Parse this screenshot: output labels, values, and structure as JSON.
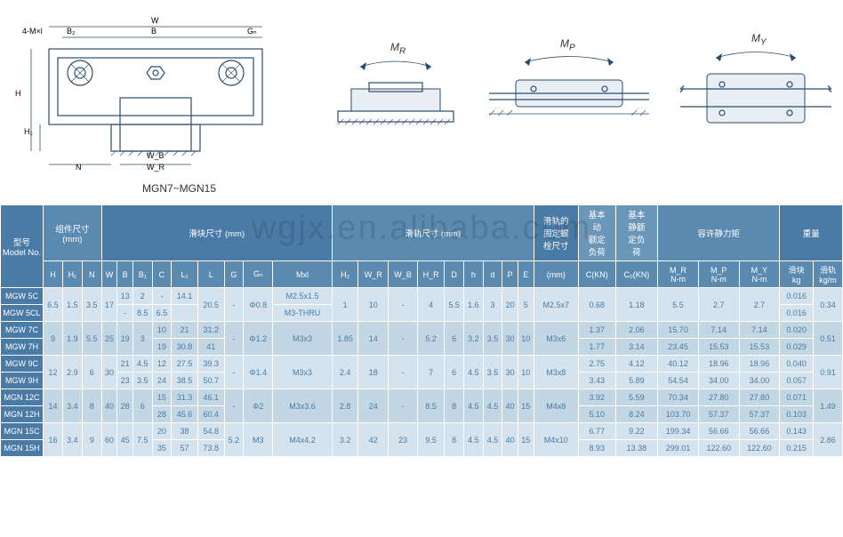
{
  "diagram_labels": {
    "main": "MGN7~MGN15",
    "mr": "M",
    "mr_sub": "R",
    "mp": "M",
    "mp_sub": "P",
    "my": "M",
    "my_sub": "Y",
    "dim_4ml": "4-M×l",
    "dim_w": "W",
    "dim_b2": "B₂",
    "dim_b": "B",
    "dim_gn": "Gₙ",
    "dim_h": "H",
    "dim_h1": "H₁",
    "dim_n": "N",
    "dim_wb": "W_B",
    "dim_wr": "W_R"
  },
  "watermark": "wgjx.en.alibaba.com",
  "header_groups": {
    "model": "型号\nModel No.",
    "assembly": "组件尺寸\n(mm)",
    "block": "滑块尺寸 (mm)",
    "rail": "滑轨尺寸 (mm)",
    "bolt": "滑轨的\n固定螺\n栓尺寸",
    "c_dyn": "基本\n动\n额定\n负荷",
    "c_stat": "基本\n静额\n定负\n荷",
    "moment": "容许静力矩",
    "weight": "重量"
  },
  "header_cols": [
    "H",
    "H₁",
    "N",
    "W",
    "B",
    "B₁",
    "C",
    "L₁",
    "L",
    "G",
    "Gₙ",
    "Mxl",
    "H₂",
    "W_R",
    "W_B",
    "H_R",
    "D",
    "h",
    "d",
    "P",
    "E",
    "(mm)",
    "C(KN)",
    "C₀(KN)",
    "M_R\nN-m",
    "M_P\nN-m",
    "M_Y\nN-m",
    "滑块\nkg",
    "滑轨\nkg/m"
  ],
  "rows": [
    {
      "model": "MGW 5C",
      "cells": [
        "6.5",
        "1.5",
        "3.5",
        "17",
        "13",
        "2",
        "-",
        "14.1",
        "20.5",
        "-",
        "Φ0.8",
        "M2.5x1.5",
        "1",
        "10",
        "-",
        "4",
        "5.5",
        "1.6",
        "3",
        "20",
        "5",
        "M2.5x7",
        "0.68",
        "1.18",
        "5.5",
        "2.7",
        "2.7",
        "0.016",
        "0.34"
      ],
      "merge": [
        0,
        1,
        2,
        3,
        8,
        9,
        10,
        12,
        13,
        14,
        15,
        16,
        17,
        18,
        19,
        20,
        21,
        22,
        23,
        24,
        25,
        26,
        28
      ]
    },
    {
      "model": "MGW 5CL",
      "cells": [
        "",
        "",
        "",
        "",
        "-",
        "8.5",
        "6.5",
        "",
        "",
        "",
        "",
        "M3-THRU",
        "",
        "",
        "",
        "",
        "",
        "",
        "",
        "",
        "",
        "",
        "",
        "",
        "",
        "",
        "",
        "0.016",
        ""
      ]
    },
    {
      "model": "MGW 7C",
      "cells": [
        "9",
        "1.9",
        "5.5",
        "25",
        "19",
        "3",
        "10",
        "21",
        "31.2",
        "-",
        "Φ1.2",
        "M3x3",
        "1.85",
        "14",
        "-",
        "5.2",
        "6",
        "3.2",
        "3.5",
        "30",
        "10",
        "M3x6",
        "1.37",
        "2.06",
        "15.70",
        "7.14",
        "7.14",
        "0.020",
        "0.51"
      ],
      "merge": [
        0,
        1,
        2,
        3,
        4,
        5,
        9,
        10,
        11,
        12,
        13,
        14,
        15,
        16,
        17,
        18,
        19,
        20,
        21,
        28
      ]
    },
    {
      "model": "MGW 7H",
      "cells": [
        "",
        "",
        "",
        "",
        "",
        "",
        "19",
        "30.8",
        "41",
        "",
        "",
        "",
        "",
        "",
        "",
        "",
        "",
        "",
        "",
        "",
        "",
        "",
        "1.77",
        "3.14",
        "23.45",
        "15.53",
        "15.53",
        "0.029",
        ""
      ]
    },
    {
      "model": "MGW 9C",
      "cells": [
        "12",
        "2.9",
        "6",
        "30",
        "21",
        "4.5",
        "12",
        "27.5",
        "39.3",
        "-",
        "Φ1.4",
        "M3x3",
        "2.4",
        "18",
        "-",
        "7",
        "6",
        "4.5",
        "3.5",
        "30",
        "10",
        "M3x8",
        "2.75",
        "4.12",
        "40.12",
        "18.96",
        "18.96",
        "0.040",
        "0.91"
      ],
      "merge": [
        0,
        1,
        2,
        3,
        9,
        10,
        11,
        12,
        13,
        14,
        15,
        16,
        17,
        18,
        19,
        20,
        21,
        28
      ]
    },
    {
      "model": "MGW 9H",
      "cells": [
        "",
        "",
        "",
        "",
        "23",
        "3.5",
        "24",
        "38.5",
        "50.7",
        "",
        "",
        "",
        "",
        "",
        "",
        "",
        "",
        "",
        "",
        "",
        "",
        "",
        "3.43",
        "5.89",
        "54.54",
        "34.00",
        "34.00",
        "0.057",
        ""
      ]
    },
    {
      "model": "MGN 12C",
      "cells": [
        "14",
        "3.4",
        "8",
        "40",
        "28",
        "6",
        "15",
        "31.3",
        "46.1",
        "-",
        "Φ2",
        "M3x3.6",
        "2.8",
        "24",
        "-",
        "8.5",
        "8",
        "4.5",
        "4.5",
        "40",
        "15",
        "M4x8",
        "3.92",
        "5.59",
        "70.34",
        "27.80",
        "27.80",
        "0.071",
        "1.49"
      ],
      "merge": [
        0,
        1,
        2,
        3,
        4,
        5,
        9,
        10,
        11,
        12,
        13,
        14,
        15,
        16,
        17,
        18,
        19,
        20,
        21,
        28
      ]
    },
    {
      "model": "MGN 12H",
      "cells": [
        "",
        "",
        "",
        "",
        "",
        "",
        "28",
        "45.6",
        "60.4",
        "",
        "",
        "",
        "",
        "",
        "",
        "",
        "",
        "",
        "",
        "",
        "",
        "",
        "5.10",
        "8.24",
        "103.70",
        "57.37",
        "57.37",
        "0.103",
        ""
      ]
    },
    {
      "model": "MGN 15C",
      "cells": [
        "16",
        "3.4",
        "9",
        "60",
        "45",
        "7.5",
        "20",
        "38",
        "54.8",
        "5.2",
        "M3",
        "M4x4.2",
        "3.2",
        "42",
        "23",
        "9.5",
        "8",
        "4.5",
        "4.5",
        "40",
        "15",
        "M4x10",
        "6.77",
        "9.22",
        "199.34",
        "56.66",
        "56.66",
        "0.143",
        "2.86"
      ],
      "merge": [
        0,
        1,
        2,
        3,
        4,
        5,
        9,
        10,
        11,
        12,
        13,
        14,
        15,
        16,
        17,
        18,
        19,
        20,
        21,
        28
      ]
    },
    {
      "model": "MGN 15H",
      "cells": [
        "",
        "",
        "",
        "",
        "",
        "",
        "35",
        "57",
        "73.8",
        "",
        "",
        "",
        "",
        "",
        "",
        "",
        "",
        "",
        "",
        "",
        "",
        "",
        "8.93",
        "13.38",
        "299.01",
        "122.60",
        "122.60",
        "0.215",
        ""
      ]
    }
  ],
  "colors": {
    "header1": "#4a7ba6",
    "header2": "#5a8ab0",
    "row_light": "#d4e3ed",
    "row_dark": "#c2d6e3",
    "text": "#4a7ba6",
    "diagram_line": "#2a4d6e"
  }
}
